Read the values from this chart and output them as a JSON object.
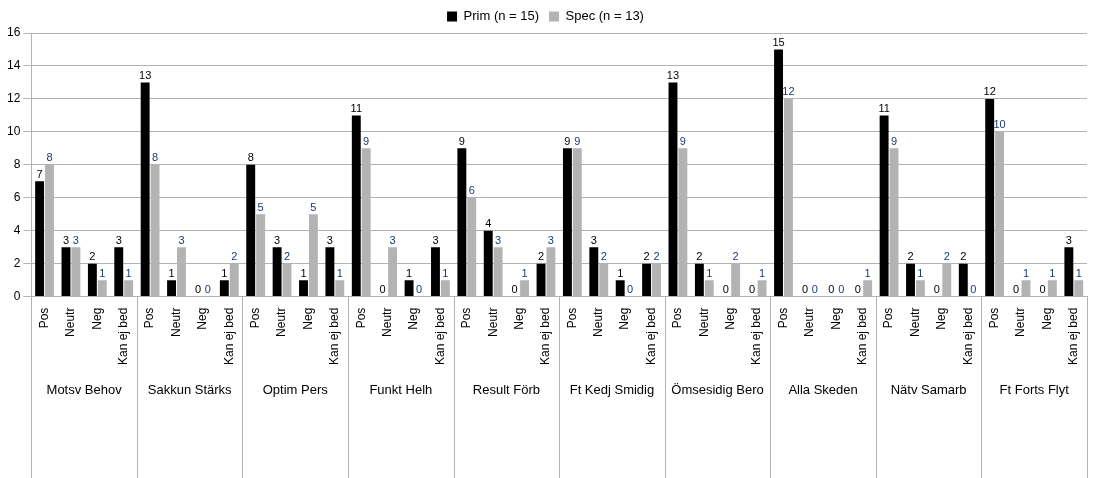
{
  "chart_data": {
    "type": "bar",
    "categories": [
      "Pos",
      "Neutr",
      "Neg",
      "Kan ej bed",
      "Pos",
      "Neutr",
      "Neg",
      "Kan ej bed",
      "Pos",
      "Neutr",
      "Neg",
      "Kan ej bed",
      "Pos",
      "Neutr",
      "Neg",
      "Kan ej bed",
      "Pos",
      "Neutr",
      "Neg",
      "Kan ej bed",
      "Pos",
      "Neutr",
      "Neg",
      "Kan ej bed",
      "Pos",
      "Neutr",
      "Neg",
      "Kan ej bed",
      "Pos",
      "Neutr",
      "Neg",
      "Kan ej bed",
      "Pos",
      "Neutr",
      "Neg",
      "Kan ej bed",
      "Pos",
      "Neutr",
      "Neg",
      "Kan ej bed"
    ],
    "series": [
      {
        "name": "Prim (n = 15)",
        "color": "#000000",
        "values": [
          7,
          3,
          2,
          3,
          13,
          1,
          0,
          1,
          8,
          3,
          1,
          3,
          11,
          0,
          1,
          3,
          9,
          4,
          0,
          2,
          9,
          3,
          1,
          2,
          13,
          2,
          0,
          0,
          15,
          0,
          0,
          0,
          11,
          2,
          0,
          2,
          12,
          0,
          0,
          3
        ]
      },
      {
        "name": "Spec (n = 13)",
        "color": "#b3b3b3",
        "values": [
          8,
          3,
          1,
          1,
          8,
          3,
          0,
          2,
          5,
          2,
          5,
          1,
          9,
          3,
          0,
          1,
          6,
          3,
          1,
          3,
          9,
          2,
          0,
          2,
          9,
          1,
          2,
          1,
          12,
          0,
          0,
          1,
          9,
          1,
          2,
          0,
          10,
          1,
          1,
          1
        ]
      }
    ],
    "annotations": [
      "Motsv Behov",
      "Sakkun Stärks",
      "Optim Pers",
      "Funkt Helh",
      "Result Förb",
      "Ft Kedj Smidig",
      "Ömsesidig Bero",
      "Alla Skeden",
      "Nätv Samarb",
      "Ft Forts Flyt"
    ],
    "ylim": [
      0,
      16
    ],
    "yticks": [
      0,
      2,
      4,
      6,
      8,
      10,
      12,
      14,
      16
    ],
    "grid": "y",
    "legend": "top",
    "data_labels": true
  }
}
